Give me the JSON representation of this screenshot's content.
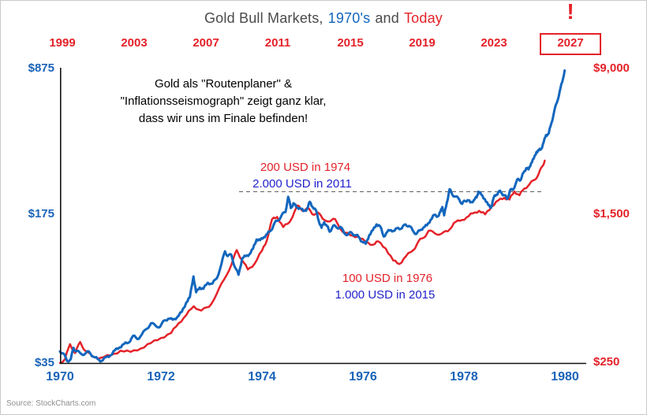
{
  "title": {
    "prefix": "Gold Bull Markets,",
    "era_blue": "1970's",
    "conjunction": "and",
    "era_red": "Today"
  },
  "alert_mark": "!",
  "axes": {
    "top": {
      "labels": [
        "1999",
        "2003",
        "2007",
        "2011",
        "2015",
        "2019",
        "2023",
        "2027"
      ]
    },
    "bottom": {
      "labels": [
        "1970",
        "1972",
        "1974",
        "1976",
        "1978",
        "1980"
      ]
    },
    "left": {
      "labels": [
        "$875",
        "$175",
        "$35"
      ]
    },
    "right": {
      "labels": [
        "$9,000",
        "$1,500",
        "$250"
      ]
    }
  },
  "annotations": {
    "message_line1": "Gold als \"Routenplaner\" &",
    "message_line2": "\"Inflationsseismograph\" zeigt ganz klar,",
    "message_line3": "dass wir uns im Finale befinden!",
    "peak_red": "200 USD in 1974",
    "peak_blue": "2.000 USD in 2011",
    "trough_red": "100 USD in 1976",
    "trough_blue": "1.000 USD in 2015"
  },
  "source": "Source: StockCharts.com",
  "colors": {
    "red_series": "#e42229",
    "blue_series": "#1266bd",
    "blue_annotation": "#2222cc",
    "title_gray": "#4a4a4a"
  },
  "chart_data": {
    "type": "line",
    "title": "Gold Bull Markets, 1970's and Today",
    "x_axis_bottom": {
      "unit": "year",
      "ticks": [
        1970,
        1972,
        1974,
        1976,
        1978,
        1980
      ],
      "applies_to": "Gold 1970s"
    },
    "x_axis_top": {
      "unit": "year",
      "ticks": [
        1999,
        2003,
        2007,
        2011,
        2015,
        2019,
        2023,
        2027
      ],
      "applies_to": "Gold Today",
      "highlighted_tick": 2027
    },
    "y_axis_left": {
      "scale": "log",
      "min": 35,
      "mid": 175,
      "max": 875,
      "unit": "USD",
      "applies_to": "Gold 1970s"
    },
    "y_axis_right": {
      "scale": "log",
      "min": 250,
      "mid": 1500,
      "max": 9000,
      "unit": "USD",
      "applies_to": "Gold Today"
    },
    "reference_line": {
      "style": "dashed",
      "level_left_usd": 200,
      "level_right_usd": 2000
    },
    "grid": false,
    "legend": "none",
    "series": [
      {
        "name": "Gold price 1970s bull market",
        "color": "#e42229",
        "width": 2.5,
        "x_axis": "bottom",
        "y_axis": "left",
        "points": [
          [
            1970.0,
            35
          ],
          [
            1970.1,
            36.5
          ],
          [
            1970.2,
            43
          ],
          [
            1970.3,
            39
          ],
          [
            1970.4,
            44
          ],
          [
            1970.5,
            40
          ],
          [
            1970.65,
            37.5
          ],
          [
            1970.8,
            37
          ],
          [
            1971.0,
            38
          ],
          [
            1971.2,
            40
          ],
          [
            1971.4,
            39.5
          ],
          [
            1971.6,
            41
          ],
          [
            1971.8,
            43.5
          ],
          [
            1972.0,
            46
          ],
          [
            1972.2,
            48.5
          ],
          [
            1972.35,
            54
          ],
          [
            1972.5,
            59
          ],
          [
            1972.65,
            65
          ],
          [
            1972.8,
            62
          ],
          [
            1972.95,
            64.5
          ],
          [
            1973.1,
            74
          ],
          [
            1973.25,
            87
          ],
          [
            1973.4,
            103
          ],
          [
            1973.5,
            120
          ],
          [
            1973.6,
            108
          ],
          [
            1973.72,
            97
          ],
          [
            1973.85,
            103
          ],
          [
            1974.0,
            119
          ],
          [
            1974.1,
            134
          ],
          [
            1974.2,
            168
          ],
          [
            1974.3,
            172
          ],
          [
            1974.42,
            154
          ],
          [
            1974.55,
            163
          ],
          [
            1974.7,
            195
          ],
          [
            1974.8,
            184
          ],
          [
            1974.9,
            190
          ],
          [
            1975.0,
            177
          ],
          [
            1975.1,
            181
          ],
          [
            1975.2,
            169
          ],
          [
            1975.35,
            164
          ],
          [
            1975.45,
            168
          ],
          [
            1975.6,
            146
          ],
          [
            1975.75,
            141
          ],
          [
            1975.9,
            139
          ],
          [
            1976.05,
            131
          ],
          [
            1976.2,
            127
          ],
          [
            1976.3,
            132
          ],
          [
            1976.45,
            122
          ],
          [
            1976.6,
            107
          ],
          [
            1976.72,
            103
          ],
          [
            1976.85,
            112
          ],
          [
            1977.0,
            120
          ],
          [
            1977.1,
            132
          ],
          [
            1977.2,
            137
          ],
          [
            1977.3,
            148
          ],
          [
            1977.42,
            144
          ],
          [
            1977.55,
            143
          ],
          [
            1977.68,
            147
          ],
          [
            1977.8,
            161
          ],
          [
            1977.92,
            165
          ],
          [
            1978.05,
            171
          ],
          [
            1978.18,
            179
          ],
          [
            1978.3,
            184
          ],
          [
            1978.42,
            177
          ],
          [
            1978.55,
            193
          ],
          [
            1978.68,
            206
          ],
          [
            1978.8,
            212
          ],
          [
            1978.9,
            208
          ],
          [
            1979.0,
            227
          ],
          [
            1979.1,
            218
          ],
          [
            1979.2,
            235
          ],
          [
            1979.3,
            246
          ],
          [
            1979.4,
            258
          ],
          [
            1979.48,
            275
          ],
          [
            1979.55,
            298
          ],
          [
            1979.6,
            318
          ]
        ]
      },
      {
        "name": "Gold price today bull market",
        "color": "#1266bd",
        "width": 3,
        "x_axis": "top",
        "y_axis": "right",
        "points": [
          [
            1999.0,
            288
          ],
          [
            1999.2,
            280
          ],
          [
            1999.4,
            256
          ],
          [
            1999.6,
            262
          ],
          [
            1999.75,
            301
          ],
          [
            1999.9,
            288
          ],
          [
            2000.1,
            284
          ],
          [
            2000.35,
            277
          ],
          [
            2000.6,
            288
          ],
          [
            2000.85,
            270
          ],
          [
            2001.1,
            262
          ],
          [
            2001.3,
            256
          ],
          [
            2001.55,
            268
          ],
          [
            2001.8,
            274
          ],
          [
            2002.05,
            292
          ],
          [
            2002.3,
            302
          ],
          [
            2002.55,
            315
          ],
          [
            2002.8,
            320
          ],
          [
            2003.05,
            348
          ],
          [
            2003.3,
            334
          ],
          [
            2003.55,
            355
          ],
          [
            2003.8,
            378
          ],
          [
            2004.05,
            405
          ],
          [
            2004.3,
            393
          ],
          [
            2004.55,
            388
          ],
          [
            2004.8,
            420
          ],
          [
            2005.0,
            428
          ],
          [
            2005.25,
            423
          ],
          [
            2005.5,
            436
          ],
          [
            2005.75,
            465
          ],
          [
            2006.0,
            520
          ],
          [
            2006.2,
            555
          ],
          [
            2006.4,
            715
          ],
          [
            2006.55,
            590
          ],
          [
            2006.75,
            625
          ],
          [
            2006.95,
            615
          ],
          [
            2007.2,
            662
          ],
          [
            2007.45,
            655
          ],
          [
            2007.7,
            700
          ],
          [
            2007.95,
            830
          ],
          [
            2008.15,
            970
          ],
          [
            2008.3,
            915
          ],
          [
            2008.5,
            930
          ],
          [
            2008.7,
            800
          ],
          [
            2008.9,
            730
          ],
          [
            2009.1,
            890
          ],
          [
            2009.3,
            915
          ],
          [
            2009.5,
            935
          ],
          [
            2009.7,
            1000
          ],
          [
            2009.9,
            1120
          ],
          [
            2010.1,
            1110
          ],
          [
            2010.3,
            1150
          ],
          [
            2010.5,
            1200
          ],
          [
            2010.7,
            1250
          ],
          [
            2010.9,
            1370
          ],
          [
            2011.1,
            1410
          ],
          [
            2011.3,
            1510
          ],
          [
            2011.5,
            1560
          ],
          [
            2011.65,
            1880
          ],
          [
            2011.8,
            1640
          ],
          [
            2011.95,
            1740
          ],
          [
            2012.1,
            1660
          ],
          [
            2012.3,
            1640
          ],
          [
            2012.5,
            1580
          ],
          [
            2012.7,
            1620
          ],
          [
            2012.85,
            1770
          ],
          [
            2013.0,
            1665
          ],
          [
            2013.2,
            1590
          ],
          [
            2013.35,
            1400
          ],
          [
            2013.5,
            1290
          ],
          [
            2013.65,
            1380
          ],
          [
            2013.8,
            1320
          ],
          [
            2013.95,
            1230
          ],
          [
            2014.15,
            1325
          ],
          [
            2014.35,
            1290
          ],
          [
            2014.55,
            1305
          ],
          [
            2014.75,
            1215
          ],
          [
            2014.95,
            1185
          ],
          [
            2015.15,
            1220
          ],
          [
            2015.35,
            1180
          ],
          [
            2015.55,
            1160
          ],
          [
            2015.75,
            1090
          ],
          [
            2015.95,
            1062
          ],
          [
            2016.15,
            1180
          ],
          [
            2016.35,
            1255
          ],
          [
            2016.55,
            1345
          ],
          [
            2016.75,
            1315
          ],
          [
            2016.95,
            1160
          ],
          [
            2017.15,
            1230
          ],
          [
            2017.35,
            1255
          ],
          [
            2017.55,
            1245
          ],
          [
            2017.75,
            1290
          ],
          [
            2017.95,
            1280
          ],
          [
            2018.15,
            1345
          ],
          [
            2018.35,
            1320
          ],
          [
            2018.55,
            1255
          ],
          [
            2018.75,
            1195
          ],
          [
            2018.95,
            1250
          ],
          [
            2019.15,
            1295
          ],
          [
            2019.35,
            1330
          ],
          [
            2019.55,
            1420
          ],
          [
            2019.75,
            1510
          ],
          [
            2019.95,
            1480
          ],
          [
            2020.1,
            1570
          ],
          [
            2020.2,
            1660
          ],
          [
            2020.3,
            1500
          ],
          [
            2020.45,
            1750
          ],
          [
            2020.6,
            2060
          ],
          [
            2020.75,
            1930
          ],
          [
            2020.95,
            1885
          ],
          [
            2021.15,
            1810
          ],
          [
            2021.3,
            1725
          ],
          [
            2021.45,
            1790
          ],
          [
            2021.6,
            1805
          ],
          [
            2021.75,
            1755
          ],
          [
            2021.95,
            1805
          ],
          [
            2022.1,
            1865
          ],
          [
            2022.2,
            2000
          ],
          [
            2022.35,
            1935
          ],
          [
            2022.55,
            1830
          ],
          [
            2022.75,
            1700
          ],
          [
            2022.9,
            1645
          ],
          [
            2023.05,
            1865
          ],
          [
            2023.2,
            1930
          ],
          [
            2023.35,
            2015
          ],
          [
            2023.5,
            1955
          ],
          [
            2023.65,
            1915
          ],
          [
            2023.8,
            1830
          ],
          [
            2023.95,
            2035
          ],
          [
            2024.1,
            2045
          ],
          [
            2024.25,
            2180
          ],
          [
            2024.4,
            2340
          ],
          [
            2024.55,
            2310
          ],
          [
            2024.7,
            2520
          ],
          [
            2024.85,
            2660
          ],
          [
            2024.98,
            2620
          ],
          [
            2025.12,
            2820
          ],
          [
            2025.27,
            2990
          ],
          [
            2025.42,
            3240
          ],
          [
            2025.55,
            3300
          ],
          [
            2025.68,
            3360
          ],
          [
            2025.82,
            3650
          ],
          [
            2025.95,
            3980
          ],
          [
            2026.1,
            4060
          ],
          [
            2026.25,
            4600
          ],
          [
            2026.4,
            5300
          ],
          [
            2026.55,
            5900
          ],
          [
            2026.7,
            6700
          ],
          [
            2026.85,
            7600
          ],
          [
            2026.98,
            8700
          ]
        ]
      }
    ]
  }
}
